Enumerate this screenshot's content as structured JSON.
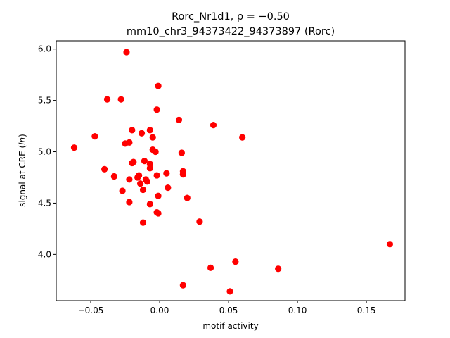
{
  "chart_data": {
    "type": "scatter",
    "title": "Rorc_Nr1d1, ρ = −0.50",
    "subtitle": "mm10_chr3_94373422_94373897 (Rorc)",
    "xlabel": "motif activity",
    "ylabel": "signal at CRE (ln)",
    "xlim": [
      -0.075,
      0.178
    ],
    "ylim": [
      3.55,
      6.08
    ],
    "xticks": [
      -0.05,
      0.0,
      0.05,
      0.1,
      0.15
    ],
    "xtick_labels": [
      "−0.05",
      "0.00",
      "0.05",
      "0.10",
      "0.15"
    ],
    "yticks": [
      4.0,
      4.5,
      5.0,
      5.5,
      6.0
    ],
    "ytick_labels": [
      "4.0",
      "4.5",
      "5.0",
      "5.5",
      "6.0"
    ],
    "grid": false,
    "marker_color": "#ff0000",
    "points": [
      {
        "x": -0.024,
        "y": 5.97
      },
      {
        "x": -0.038,
        "y": 5.51
      },
      {
        "x": -0.028,
        "y": 5.51
      },
      {
        "x": -0.001,
        "y": 5.64
      },
      {
        "x": -0.002,
        "y": 5.41
      },
      {
        "x": 0.014,
        "y": 5.31
      },
      {
        "x": 0.039,
        "y": 5.26
      },
      {
        "x": 0.06,
        "y": 5.14
      },
      {
        "x": -0.062,
        "y": 5.04
      },
      {
        "x": -0.047,
        "y": 5.15
      },
      {
        "x": -0.02,
        "y": 5.21
      },
      {
        "x": -0.013,
        "y": 5.18
      },
      {
        "x": -0.007,
        "y": 5.21
      },
      {
        "x": -0.005,
        "y": 5.14
      },
      {
        "x": -0.025,
        "y": 5.08
      },
      {
        "x": -0.022,
        "y": 5.09
      },
      {
        "x": -0.005,
        "y": 5.02
      },
      {
        "x": -0.003,
        "y": 5.0
      },
      {
        "x": 0.016,
        "y": 4.99
      },
      {
        "x": -0.04,
        "y": 4.83
      },
      {
        "x": -0.02,
        "y": 4.89
      },
      {
        "x": -0.019,
        "y": 4.9
      },
      {
        "x": -0.011,
        "y": 4.91
      },
      {
        "x": -0.007,
        "y": 4.88
      },
      {
        "x": -0.007,
        "y": 4.84
      },
      {
        "x": 0.005,
        "y": 4.79
      },
      {
        "x": 0.017,
        "y": 4.81
      },
      {
        "x": 0.017,
        "y": 4.78
      },
      {
        "x": -0.033,
        "y": 4.76
      },
      {
        "x": -0.022,
        "y": 4.73
      },
      {
        "x": -0.016,
        "y": 4.75
      },
      {
        "x": -0.015,
        "y": 4.77
      },
      {
        "x": -0.01,
        "y": 4.73
      },
      {
        "x": -0.009,
        "y": 4.71
      },
      {
        "x": -0.002,
        "y": 4.77
      },
      {
        "x": -0.014,
        "y": 4.69
      },
      {
        "x": -0.012,
        "y": 4.63
      },
      {
        "x": 0.006,
        "y": 4.65
      },
      {
        "x": -0.027,
        "y": 4.62
      },
      {
        "x": -0.001,
        "y": 4.57
      },
      {
        "x": 0.02,
        "y": 4.55
      },
      {
        "x": -0.022,
        "y": 4.51
      },
      {
        "x": -0.007,
        "y": 4.49
      },
      {
        "x": -0.002,
        "y": 4.41
      },
      {
        "x": -0.001,
        "y": 4.4
      },
      {
        "x": -0.012,
        "y": 4.31
      },
      {
        "x": 0.029,
        "y": 4.32
      },
      {
        "x": 0.167,
        "y": 4.1
      },
      {
        "x": 0.055,
        "y": 3.93
      },
      {
        "x": 0.037,
        "y": 3.87
      },
      {
        "x": 0.086,
        "y": 3.86
      },
      {
        "x": 0.017,
        "y": 3.7
      },
      {
        "x": 0.051,
        "y": 3.64
      }
    ]
  }
}
